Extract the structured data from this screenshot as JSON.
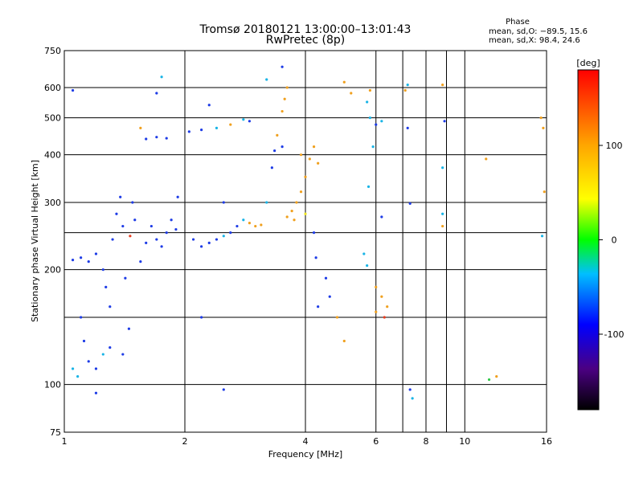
{
  "chart_data": {
    "type": "scatter",
    "title": "Tromsø 20180121 13:00:00–13:01:43",
    "subtitle": "RwPretec (8p)",
    "xlabel": "Frequency [MHz]",
    "ylabel": "Stationary phase Virtual Height [km]",
    "xscale": "log",
    "yscale": "log",
    "xlim": [
      1,
      16
    ],
    "ylim": [
      75,
      750
    ],
    "x_ticks": [
      1,
      2,
      4,
      6,
      8,
      10,
      16
    ],
    "x_gridlines": [
      1,
      2,
      4,
      6,
      7,
      8,
      9,
      10,
      16
    ],
    "y_ticks": [
      75,
      100,
      200,
      300,
      400,
      500,
      600,
      750
    ],
    "y_gridlines": [
      100,
      150,
      200,
      250,
      300,
      400,
      500,
      600
    ],
    "grid": true,
    "stats": {
      "heading": "Phase",
      "line_o": "mean, sd,O: −89.5, 15.6",
      "line_x": "mean, sd,X:  98.4, 24.6"
    },
    "colorbar": {
      "label": "[deg]",
      "min": -180,
      "max": 180,
      "ticks": [
        100,
        0,
        -100
      ],
      "colormap": "rainbow-black-to-red"
    },
    "colors": {
      "blue": "#1e3ce6",
      "cyan": "#19b4e6",
      "green": "#2ec846",
      "yellow": "#f0e61e",
      "orange": "#f0a01e",
      "red": "#e63c1e",
      "purple": "#5a1ea0"
    },
    "series": [
      {
        "values": [
          {
            "x": 1.05,
            "y": 212,
            "phase": -100
          },
          {
            "x": 1.1,
            "y": 215,
            "phase": -100
          },
          {
            "x": 1.15,
            "y": 210,
            "phase": -110
          },
          {
            "x": 1.2,
            "y": 220,
            "phase": -100
          },
          {
            "x": 1.25,
            "y": 200,
            "phase": -100
          },
          {
            "x": 1.27,
            "y": 180,
            "phase": -110
          },
          {
            "x": 1.3,
            "y": 160,
            "phase": -100
          },
          {
            "x": 1.32,
            "y": 240,
            "phase": -100
          },
          {
            "x": 1.35,
            "y": 280,
            "phase": -100
          },
          {
            "x": 1.38,
            "y": 310,
            "phase": -90
          },
          {
            "x": 1.4,
            "y": 260,
            "phase": -100
          },
          {
            "x": 1.42,
            "y": 190,
            "phase": -100
          },
          {
            "x": 1.45,
            "y": 140,
            "phase": -100
          },
          {
            "x": 1.1,
            "y": 150,
            "phase": -100
          },
          {
            "x": 1.12,
            "y": 130,
            "phase": -100
          },
          {
            "x": 1.15,
            "y": 115,
            "phase": -90
          },
          {
            "x": 1.2,
            "y": 110,
            "phase": -80
          },
          {
            "x": 1.25,
            "y": 120,
            "phase": -60
          },
          {
            "x": 1.3,
            "y": 125,
            "phase": -100
          },
          {
            "x": 1.4,
            "y": 120,
            "phase": -100
          },
          {
            "x": 1.05,
            "y": 110,
            "phase": -40
          },
          {
            "x": 1.08,
            "y": 105,
            "phase": -20
          },
          {
            "x": 1.5,
            "y": 270,
            "phase": -100
          },
          {
            "x": 1.48,
            "y": 300,
            "phase": -90
          },
          {
            "x": 1.46,
            "y": 245,
            "phase": 160
          },
          {
            "x": 1.55,
            "y": 210,
            "phase": -100
          },
          {
            "x": 1.6,
            "y": 235,
            "phase": -100
          },
          {
            "x": 1.65,
            "y": 260,
            "phase": -100
          },
          {
            "x": 1.7,
            "y": 240,
            "phase": -90
          },
          {
            "x": 1.75,
            "y": 230,
            "phase": -100
          },
          {
            "x": 1.8,
            "y": 250,
            "phase": -100
          },
          {
            "x": 1.85,
            "y": 270,
            "phase": -100
          },
          {
            "x": 1.9,
            "y": 255,
            "phase": -100
          },
          {
            "x": 1.92,
            "y": 310,
            "phase": -90
          },
          {
            "x": 1.6,
            "y": 440,
            "phase": -100
          },
          {
            "x": 1.7,
            "y": 445,
            "phase": -110
          },
          {
            "x": 1.8,
            "y": 442,
            "phase": -100
          },
          {
            "x": 1.55,
            "y": 470,
            "phase": 100
          },
          {
            "x": 1.75,
            "y": 640,
            "phase": -40
          },
          {
            "x": 1.7,
            "y": 580,
            "phase": -100
          },
          {
            "x": 2.05,
            "y": 460,
            "phase": -100
          },
          {
            "x": 2.2,
            "y": 465,
            "phase": -100
          },
          {
            "x": 2.4,
            "y": 470,
            "phase": -50
          },
          {
            "x": 2.6,
            "y": 480,
            "phase": 100
          },
          {
            "x": 2.8,
            "y": 495,
            "phase": -40
          },
          {
            "x": 2.9,
            "y": 490,
            "phase": -100
          },
          {
            "x": 2.1,
            "y": 240,
            "phase": -100
          },
          {
            "x": 2.2,
            "y": 230,
            "phase": -100
          },
          {
            "x": 2.3,
            "y": 235,
            "phase": -90
          },
          {
            "x": 2.4,
            "y": 240,
            "phase": -80
          },
          {
            "x": 2.5,
            "y": 245,
            "phase": -60
          },
          {
            "x": 2.6,
            "y": 250,
            "phase": -100
          },
          {
            "x": 2.7,
            "y": 260,
            "phase": -100
          },
          {
            "x": 2.8,
            "y": 270,
            "phase": -40
          },
          {
            "x": 2.9,
            "y": 265,
            "phase": 100
          },
          {
            "x": 3.0,
            "y": 260,
            "phase": 100
          },
          {
            "x": 3.1,
            "y": 262,
            "phase": 100
          },
          {
            "x": 2.5,
            "y": 300,
            "phase": -100
          },
          {
            "x": 2.3,
            "y": 540,
            "phase": -100
          },
          {
            "x": 2.2,
            "y": 150,
            "phase": -100
          },
          {
            "x": 2.5,
            "y": 97,
            "phase": -100
          },
          {
            "x": 3.2,
            "y": 300,
            "phase": -60
          },
          {
            "x": 3.3,
            "y": 370,
            "phase": -80
          },
          {
            "x": 3.35,
            "y": 410,
            "phase": -100
          },
          {
            "x": 3.4,
            "y": 450,
            "phase": 110
          },
          {
            "x": 3.5,
            "y": 520,
            "phase": 120
          },
          {
            "x": 3.55,
            "y": 560,
            "phase": 130
          },
          {
            "x": 3.6,
            "y": 600,
            "phase": 140
          },
          {
            "x": 3.5,
            "y": 420,
            "phase": -100
          },
          {
            "x": 3.5,
            "y": 680,
            "phase": -100
          },
          {
            "x": 3.2,
            "y": 630,
            "phase": -60
          },
          {
            "x": 3.6,
            "y": 275,
            "phase": 100
          },
          {
            "x": 3.7,
            "y": 285,
            "phase": 110
          },
          {
            "x": 3.8,
            "y": 300,
            "phase": 120
          },
          {
            "x": 3.9,
            "y": 320,
            "phase": 130
          },
          {
            "x": 4.0,
            "y": 350,
            "phase": 120
          },
          {
            "x": 4.1,
            "y": 390,
            "phase": 110
          },
          {
            "x": 4.2,
            "y": 420,
            "phase": 100
          },
          {
            "x": 4.3,
            "y": 380,
            "phase": 100
          },
          {
            "x": 3.9,
            "y": 400,
            "phase": 120
          },
          {
            "x": 3.75,
            "y": 270,
            "phase": 140
          },
          {
            "x": 4.0,
            "y": 280,
            "phase": 90
          },
          {
            "x": 4.2,
            "y": 250,
            "phase": -100
          },
          {
            "x": 4.25,
            "y": 215,
            "phase": -100
          },
          {
            "x": 4.3,
            "y": 160,
            "phase": -100
          },
          {
            "x": 4.5,
            "y": 190,
            "phase": -100
          },
          {
            "x": 4.6,
            "y": 170,
            "phase": -90
          },
          {
            "x": 4.8,
            "y": 150,
            "phase": 140
          },
          {
            "x": 5.0,
            "y": 620,
            "phase": 130
          },
          {
            "x": 5.2,
            "y": 580,
            "phase": 100
          },
          {
            "x": 5.0,
            "y": 130,
            "phase": 120
          },
          {
            "x": 5.8,
            "y": 590,
            "phase": 110
          },
          {
            "x": 5.7,
            "y": 550,
            "phase": -40
          },
          {
            "x": 5.8,
            "y": 500,
            "phase": -60
          },
          {
            "x": 6.0,
            "y": 480,
            "phase": -100
          },
          {
            "x": 5.9,
            "y": 420,
            "phase": -40
          },
          {
            "x": 6.2,
            "y": 490,
            "phase": -40
          },
          {
            "x": 5.6,
            "y": 220,
            "phase": -40
          },
          {
            "x": 5.7,
            "y": 205,
            "phase": -20
          },
          {
            "x": 5.75,
            "y": 330,
            "phase": -30
          },
          {
            "x": 6.0,
            "y": 180,
            "phase": 120
          },
          {
            "x": 6.2,
            "y": 170,
            "phase": 140
          },
          {
            "x": 6.4,
            "y": 160,
            "phase": 150
          },
          {
            "x": 6.3,
            "y": 150,
            "phase": 160
          },
          {
            "x": 6.0,
            "y": 155,
            "phase": 100
          },
          {
            "x": 6.2,
            "y": 275,
            "phase": -100
          },
          {
            "x": 7.2,
            "y": 610,
            "phase": -40
          },
          {
            "x": 7.1,
            "y": 590,
            "phase": 120
          },
          {
            "x": 7.2,
            "y": 470,
            "phase": -100
          },
          {
            "x": 7.3,
            "y": 298,
            "phase": -100
          },
          {
            "x": 7.3,
            "y": 97,
            "phase": -100
          },
          {
            "x": 7.4,
            "y": 92,
            "phase": -40
          },
          {
            "x": 8.8,
            "y": 610,
            "phase": 110
          },
          {
            "x": 8.9,
            "y": 490,
            "phase": -100
          },
          {
            "x": 8.8,
            "y": 370,
            "phase": -40
          },
          {
            "x": 8.8,
            "y": 280,
            "phase": -40
          },
          {
            "x": 8.8,
            "y": 260,
            "phase": 120
          },
          {
            "x": 11.3,
            "y": 390,
            "phase": 140
          },
          {
            "x": 11.5,
            "y": 103,
            "phase": 30
          },
          {
            "x": 12.0,
            "y": 105,
            "phase": 120
          },
          {
            "x": 15.5,
            "y": 500,
            "phase": 110
          },
          {
            "x": 15.7,
            "y": 470,
            "phase": 120
          },
          {
            "x": 15.6,
            "y": 245,
            "phase": -40
          },
          {
            "x": 15.8,
            "y": 320,
            "phase": 100
          },
          {
            "x": 1.05,
            "y": 590,
            "phase": -100
          },
          {
            "x": 1.2,
            "y": 95,
            "phase": -100
          }
        ]
      }
    ]
  }
}
